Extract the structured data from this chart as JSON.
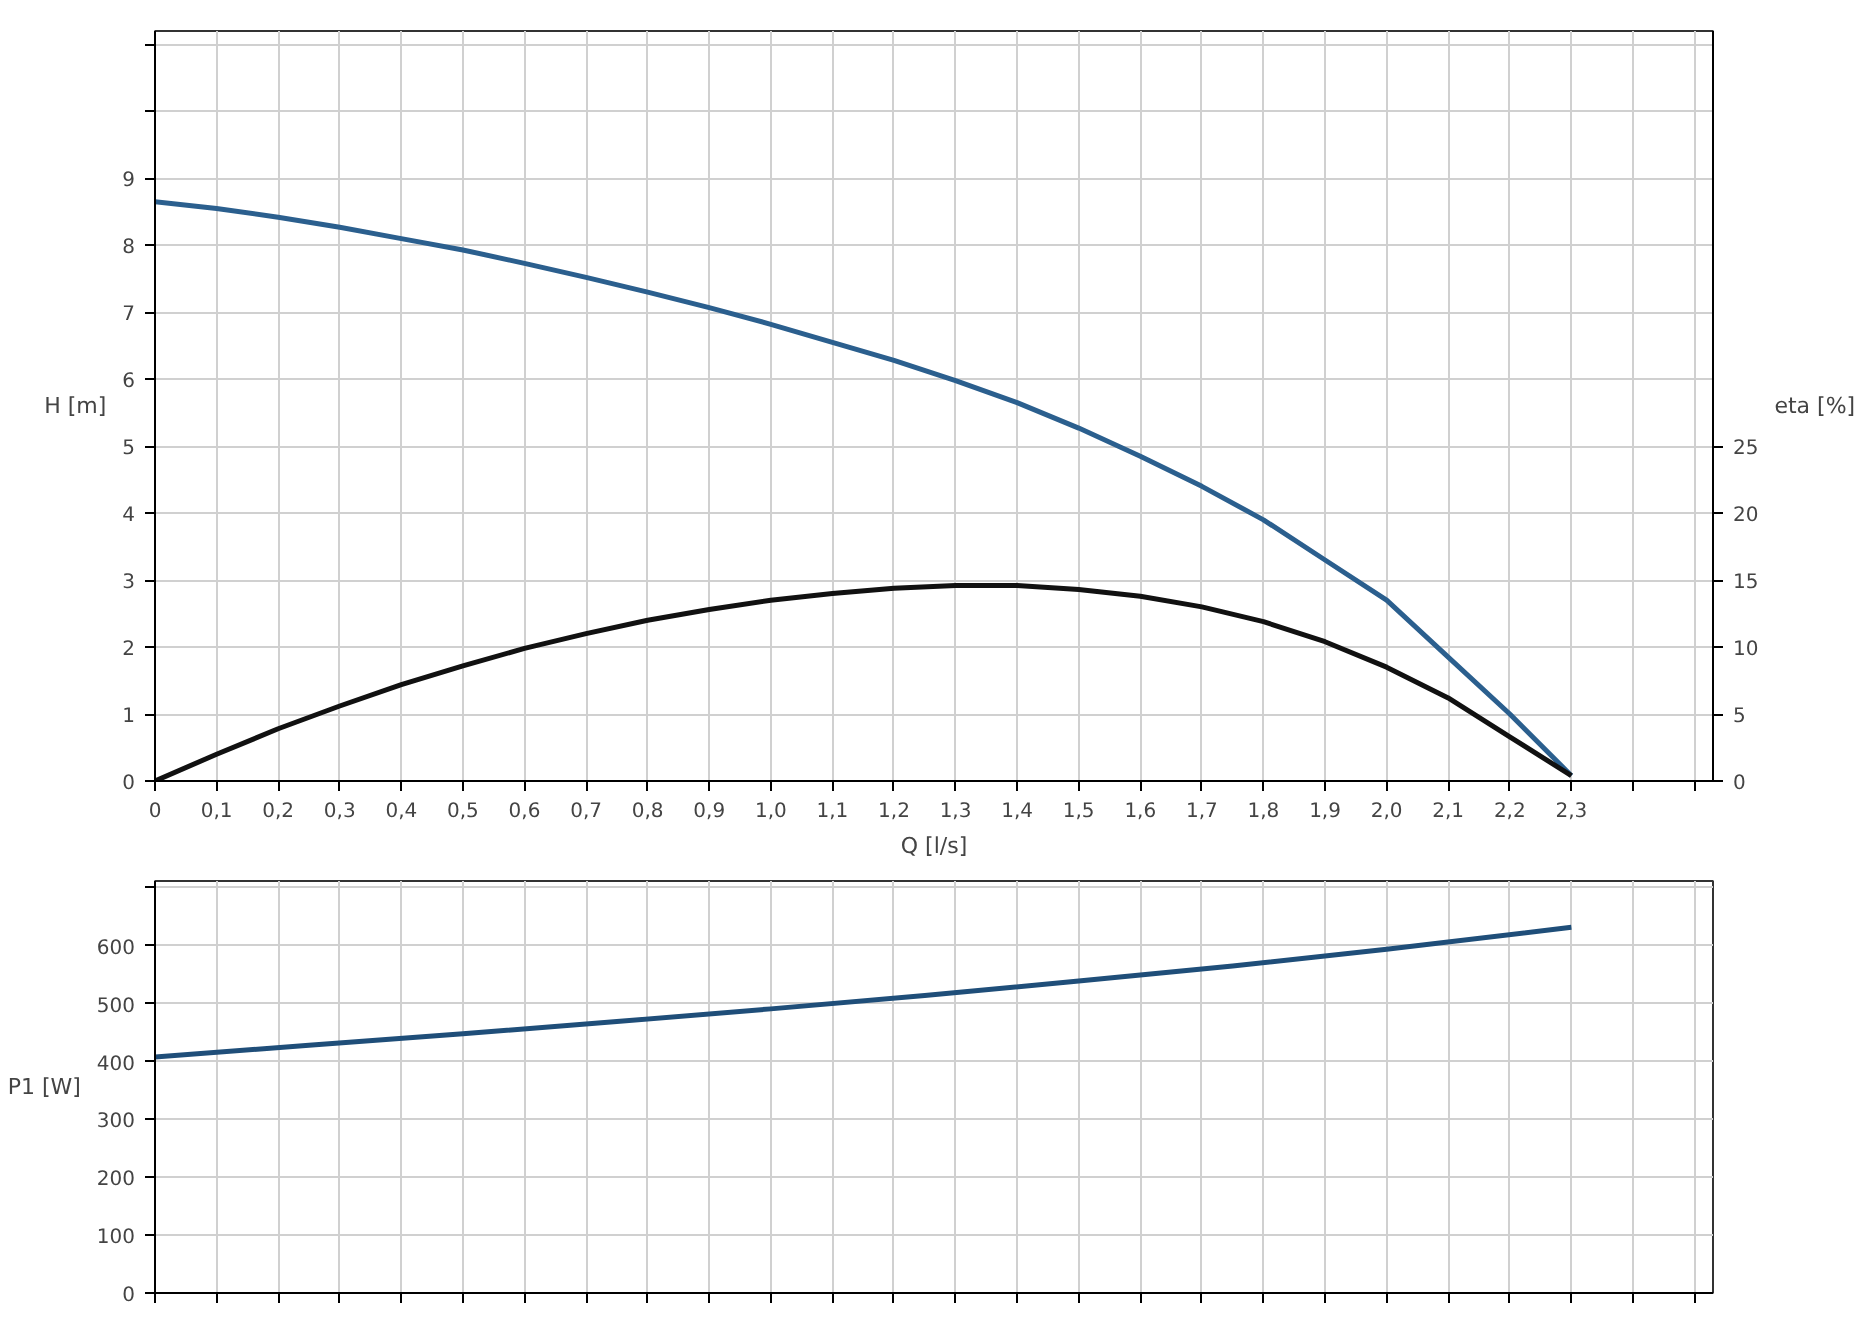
{
  "chart_data": [
    {
      "type": "line",
      "xlabel": "Q [l/s]",
      "ylabel": "H [m]",
      "y2label": "eta [%]",
      "x": [
        0,
        0.1,
        0.2,
        0.3,
        0.4,
        0.5,
        0.6,
        0.7,
        0.8,
        0.9,
        1.0,
        1.1,
        1.2,
        1.3,
        1.4,
        1.5,
        1.6,
        1.7,
        1.8,
        1.9,
        2.0,
        2.1,
        2.2,
        2.3
      ],
      "series": [
        {
          "color": "#2b5f8e",
          "values": [
            8.65,
            8.55,
            8.42,
            8.27,
            8.1,
            7.93,
            7.73,
            7.52,
            7.3,
            7.07,
            6.82,
            6.55,
            6.28,
            5.98,
            5.65,
            5.27,
            4.85,
            4.4,
            3.9,
            3.3,
            2.7,
            1.85,
            1.0,
            0.08
          ]
        },
        {
          "color": "#111111",
          "axis": "y2",
          "values": [
            0,
            2.0,
            3.9,
            5.6,
            7.2,
            8.6,
            9.9,
            11.0,
            12.0,
            12.8,
            13.5,
            14.0,
            14.4,
            14.6,
            14.6,
            14.3,
            13.8,
            13.0,
            11.9,
            10.4,
            8.5,
            6.2,
            3.3,
            0.4
          ]
        }
      ],
      "xlim": [
        0,
        2.53
      ],
      "xticks": [
        0,
        {
          "value": 0.1,
          "label": "0,1"
        },
        {
          "value": 0.2,
          "label": "0,2"
        },
        {
          "value": 0.3,
          "label": "0,3"
        },
        {
          "value": 0.4,
          "label": "0,4"
        },
        {
          "value": 0.5,
          "label": "0,5"
        },
        {
          "value": 0.6,
          "label": "0,6"
        },
        {
          "value": 0.7,
          "label": "0,7"
        },
        {
          "value": 0.8,
          "label": "0,8"
        },
        {
          "value": 0.9,
          "label": "0,9"
        },
        {
          "value": 1.0,
          "label": "1,0"
        },
        {
          "value": 1.1,
          "label": "1,1"
        },
        {
          "value": 1.2,
          "label": "1,2"
        },
        {
          "value": 1.3,
          "label": "1,3"
        },
        {
          "value": 1.4,
          "label": "1,4"
        },
        {
          "value": 1.5,
          "label": "1,5"
        },
        {
          "value": 1.6,
          "label": "1,6"
        },
        {
          "value": 1.7,
          "label": "1,7"
        },
        {
          "value": 1.8,
          "label": "1,8"
        },
        {
          "value": 1.9,
          "label": "1,9"
        },
        {
          "value": 2.0,
          "label": "2,0"
        },
        {
          "value": 2.1,
          "label": "2,1"
        },
        {
          "value": 2.2,
          "label": "2,2"
        },
        {
          "value": 2.3,
          "label": "2,3"
        },
        {
          "value": 2.4,
          "label": null
        },
        {
          "value": 2.5,
          "label": null
        }
      ],
      "ylim": [
        0,
        11.2
      ],
      "yticks": [
        0,
        1,
        2,
        3,
        4,
        5,
        6,
        7,
        8,
        9,
        {
          "value": 10,
          "label": null
        },
        {
          "value": 11,
          "label": null
        }
      ],
      "y2lim": [
        0,
        56
      ],
      "y2ticks": [
        0,
        5,
        10,
        15,
        20,
        25
      ],
      "grid": true,
      "line_style": "solid",
      "marker": "none"
    },
    {
      "type": "line",
      "ylabel": "P1 [W]",
      "x": [
        0,
        0.25,
        0.5,
        0.75,
        1.0,
        1.25,
        1.5,
        1.75,
        2.0,
        2.3
      ],
      "series": [
        {
          "color": "#1f4e79",
          "values": [
            408,
            428,
            448,
            469,
            491,
            514,
            539,
            565,
            594,
            632
          ]
        }
      ],
      "xlim": [
        0,
        2.53
      ],
      "xticks": [
        0,
        0.1,
        0.2,
        0.3,
        0.4,
        0.5,
        0.6,
        0.7,
        0.8,
        0.9,
        1.0,
        1.1,
        1.2,
        1.3,
        1.4,
        1.5,
        1.6,
        1.7,
        1.8,
        1.9,
        2.0,
        2.1,
        2.2,
        2.3,
        2.4,
        2.5
      ],
      "ylim": [
        0,
        712
      ],
      "yticks": [
        0,
        100,
        200,
        300,
        400,
        500,
        600,
        {
          "value": 700,
          "label": null
        }
      ],
      "tick_labels": "y",
      "grid": true,
      "line_style": "solid",
      "marker": "none"
    }
  ]
}
